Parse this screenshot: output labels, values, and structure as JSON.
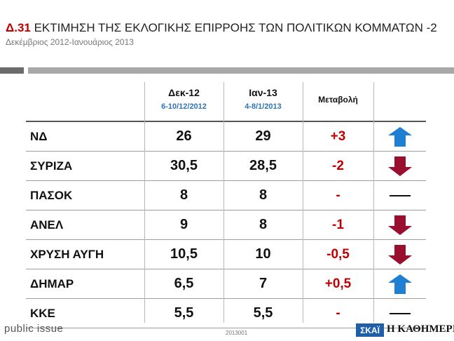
{
  "title_code": "Δ.31",
  "title_text": "ΕΚΤΙΜΗΣΗ ΤΗΣ ΕΚΛΟΓΙΚΗΣ ΕΠΙΡΡΟΗΣ ΤΩΝ ΠΟΛΙΤΙΚΩΝ ΚΟΜΜΑΤΩΝ -2",
  "subtitle": "Δεκέμβριος 2012-Ιανουάριος 2013",
  "columns": {
    "dec": {
      "label": "Δεκ-12",
      "dates": "6-10/12/2012"
    },
    "jan": {
      "label": "Ιαν-13",
      "dates": "4-8/1/2013"
    },
    "change": {
      "label": "Μεταβολή"
    }
  },
  "rows": [
    {
      "party": "ΝΔ",
      "dec": "26",
      "jan": "29",
      "change": "+3",
      "indicator": "up-arrow-icon"
    },
    {
      "party": "ΣΥΡΙΖΑ",
      "dec": "30,5",
      "jan": "28,5",
      "change": "-2",
      "indicator": "down-arrow-icon"
    },
    {
      "party": "ΠΑΣΟΚ",
      "dec": "8",
      "jan": "8",
      "change": "-",
      "indicator": "no-change-dash-icon"
    },
    {
      "party": "ΑΝΕΛ",
      "dec": "9",
      "jan": "8",
      "change": "-1",
      "indicator": "down-arrow-icon"
    },
    {
      "party": "ΧΡΥΣΗ ΑΥΓΗ",
      "dec": "10,5",
      "jan": "10",
      "change": "-0,5",
      "indicator": "down-arrow-icon"
    },
    {
      "party": "ΔΗΜΑΡ",
      "dec": "6,5",
      "jan": "7",
      "change": "+0,5",
      "indicator": "up-arrow-icon"
    },
    {
      "party": "ΚΚΕ",
      "dec": "5,5",
      "jan": "5,5",
      "change": "-",
      "indicator": "no-change-dash-icon"
    }
  ],
  "colors": {
    "up": "#1f7fd3",
    "down": "#9b0f2e",
    "change_text": "#c00000",
    "accent_blue": "#2e74b5"
  },
  "footer": {
    "brand_left": "public issue",
    "code": "2013001",
    "logo_skai": "ΣΚΑΪ",
    "logo_kathimerini": "Η ΚΑΘΗΜΕΡΙΝΗ"
  }
}
